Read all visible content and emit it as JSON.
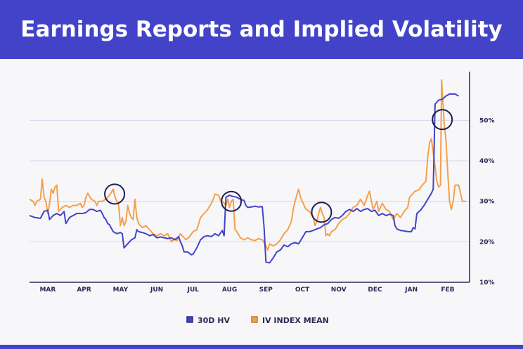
{
  "header": {
    "title": "Earnings Reports and Implied Volatility"
  },
  "colors": {
    "header_bg": "#4343c9",
    "hv": "#4343c9",
    "iv": "#f5a04a",
    "grid": "#d4d4f0",
    "text": "#2a2a55"
  },
  "chart_data": {
    "type": "line",
    "title": "Earnings Reports and Implied Volatility",
    "x_tick_labels": [
      "MAR",
      "APR",
      "MAY",
      "JUN",
      "JUL",
      "AUG",
      "SEP",
      "OCT",
      "NOV",
      "DEC",
      "JAN",
      "FEB"
    ],
    "y_tick_labels": [
      "10%",
      "20%",
      "30%",
      "40%",
      "50%"
    ],
    "y_ticks": [
      10,
      20,
      30,
      40,
      50
    ],
    "ylim": [
      10,
      61
    ],
    "xlim": [
      0,
      12.1
    ],
    "grid": true,
    "legend": "bottom",
    "series": [
      {
        "name": "30D HV",
        "color": "#4343c9",
        "points": [
          [
            0,
            26.5
          ],
          [
            0.15,
            26
          ],
          [
            0.3,
            25.8
          ],
          [
            0.4,
            27.5
          ],
          [
            0.5,
            27.8
          ],
          [
            0.55,
            25.5
          ],
          [
            0.65,
            26.5
          ],
          [
            0.75,
            27
          ],
          [
            0.85,
            26.5
          ],
          [
            0.95,
            27.5
          ],
          [
            1.0,
            24.5
          ],
          [
            1.1,
            26
          ],
          [
            1.2,
            26.5
          ],
          [
            1.3,
            27
          ],
          [
            1.45,
            27
          ],
          [
            1.55,
            27.2
          ],
          [
            1.65,
            28
          ],
          [
            1.75,
            28
          ],
          [
            1.85,
            27.5
          ],
          [
            1.95,
            27.8
          ],
          [
            2.0,
            27
          ],
          [
            2.05,
            26
          ],
          [
            2.1,
            25.5
          ],
          [
            2.15,
            24.5
          ],
          [
            2.2,
            24.2
          ],
          [
            2.3,
            22.5
          ],
          [
            2.4,
            22
          ],
          [
            2.5,
            22.3
          ],
          [
            2.55,
            22
          ],
          [
            2.6,
            18.5
          ],
          [
            2.7,
            19.5
          ],
          [
            2.8,
            20.5
          ],
          [
            2.9,
            21
          ],
          [
            2.95,
            23
          ],
          [
            3.0,
            22.5
          ],
          [
            3.1,
            22.3
          ],
          [
            3.2,
            22
          ],
          [
            3.3,
            21.5
          ],
          [
            3.4,
            21.8
          ],
          [
            3.5,
            21
          ],
          [
            3.6,
            21.2
          ],
          [
            3.7,
            21
          ],
          [
            3.8,
            20.8
          ],
          [
            3.9,
            21
          ],
          [
            4.0,
            20.5
          ],
          [
            4.1,
            21.3
          ],
          [
            4.15,
            20
          ],
          [
            4.2,
            19
          ],
          [
            4.25,
            17.5
          ],
          [
            4.35,
            17.5
          ],
          [
            4.45,
            16.8
          ],
          [
            4.5,
            17
          ],
          [
            4.6,
            18.5
          ],
          [
            4.7,
            20.5
          ],
          [
            4.8,
            21.3
          ],
          [
            4.9,
            21.5
          ],
          [
            5.0,
            21.3
          ],
          [
            5.1,
            22
          ],
          [
            5.2,
            21.5
          ],
          [
            5.3,
            22.8
          ],
          [
            5.35,
            21.5
          ],
          [
            5.4,
            31
          ],
          [
            5.5,
            31.5
          ],
          [
            5.6,
            31.2
          ],
          [
            5.7,
            31
          ],
          [
            5.8,
            30.5
          ],
          [
            5.9,
            30.2
          ],
          [
            5.95,
            29
          ],
          [
            6.0,
            28.5
          ],
          [
            6.1,
            28.6
          ],
          [
            6.2,
            28.8
          ],
          [
            6.3,
            28.6
          ],
          [
            6.4,
            28.7
          ],
          [
            6.45,
            23.5
          ],
          [
            6.5,
            15
          ],
          [
            6.6,
            14.8
          ],
          [
            6.7,
            16
          ],
          [
            6.8,
            17.5
          ],
          [
            6.9,
            18
          ],
          [
            7.0,
            19.2
          ],
          [
            7.1,
            18.8
          ],
          [
            7.2,
            19.5
          ],
          [
            7.3,
            19.8
          ],
          [
            7.4,
            19.5
          ],
          [
            7.5,
            21
          ],
          [
            7.6,
            22.5
          ],
          [
            7.7,
            22.5
          ],
          [
            7.8,
            22.8
          ],
          [
            7.9,
            23.2
          ],
          [
            8.0,
            23.5
          ],
          [
            8.1,
            24.2
          ],
          [
            8.2,
            24.5
          ],
          [
            8.3,
            25.5
          ],
          [
            8.4,
            26
          ],
          [
            8.5,
            25.8
          ],
          [
            8.6,
            26.5
          ],
          [
            8.7,
            27.5
          ],
          [
            8.8,
            28
          ],
          [
            8.9,
            27.5
          ],
          [
            9.0,
            28.2
          ],
          [
            9.1,
            27.5
          ],
          [
            9.2,
            28
          ],
          [
            9.3,
            28.2
          ],
          [
            9.4,
            27.5
          ],
          [
            9.5,
            27.8
          ],
          [
            9.6,
            26.5
          ],
          [
            9.7,
            27
          ],
          [
            9.8,
            26.5
          ],
          [
            9.9,
            26.8
          ],
          [
            10.0,
            26.5
          ],
          [
            10.05,
            24
          ],
          [
            10.1,
            23.2
          ],
          [
            10.2,
            22.8
          ],
          [
            10.3,
            22.7
          ],
          [
            10.4,
            22.5
          ],
          [
            10.5,
            22.5
          ],
          [
            10.55,
            23.5
          ],
          [
            10.6,
            23.2
          ],
          [
            10.65,
            27
          ],
          [
            10.75,
            27.8
          ],
          [
            10.85,
            29
          ],
          [
            10.95,
            30.5
          ],
          [
            11.05,
            32
          ],
          [
            11.1,
            33
          ],
          [
            11.15,
            54
          ],
          [
            11.25,
            55
          ],
          [
            11.35,
            55.2
          ],
          [
            11.45,
            56
          ],
          [
            11.55,
            56.5
          ],
          [
            11.7,
            56.5
          ],
          [
            11.8,
            56
          ]
        ]
      },
      {
        "name": "IV INDEX MEAN",
        "color": "#f5a04a",
        "points": [
          [
            0,
            30.5
          ],
          [
            0.1,
            30
          ],
          [
            0.15,
            29
          ],
          [
            0.2,
            30
          ],
          [
            0.3,
            30.5
          ],
          [
            0.35,
            35.5
          ],
          [
            0.4,
            31
          ],
          [
            0.45,
            30
          ],
          [
            0.5,
            27
          ],
          [
            0.55,
            29.5
          ],
          [
            0.6,
            33
          ],
          [
            0.65,
            32
          ],
          [
            0.7,
            33.5
          ],
          [
            0.75,
            34
          ],
          [
            0.8,
            27.5
          ],
          [
            0.9,
            28.5
          ],
          [
            1.0,
            29
          ],
          [
            1.1,
            28.5
          ],
          [
            1.2,
            29
          ],
          [
            1.3,
            29
          ],
          [
            1.4,
            29.5
          ],
          [
            1.45,
            28.5
          ],
          [
            1.5,
            29
          ],
          [
            1.55,
            31
          ],
          [
            1.6,
            32
          ],
          [
            1.7,
            30.5
          ],
          [
            1.8,
            30
          ],
          [
            1.85,
            29
          ],
          [
            1.9,
            30
          ],
          [
            2.0,
            30
          ],
          [
            2.05,
            30.3
          ],
          [
            2.1,
            30.5
          ],
          [
            2.2,
            31.5
          ],
          [
            2.3,
            33
          ],
          [
            2.35,
            31
          ],
          [
            2.4,
            30
          ],
          [
            2.45,
            29
          ],
          [
            2.5,
            24
          ],
          [
            2.55,
            26
          ],
          [
            2.6,
            24
          ],
          [
            2.65,
            25
          ],
          [
            2.7,
            29
          ],
          [
            2.75,
            27
          ],
          [
            2.8,
            26
          ],
          [
            2.85,
            25.5
          ],
          [
            2.9,
            30.5
          ],
          [
            2.95,
            26
          ],
          [
            3.0,
            24.5
          ],
          [
            3.1,
            23.5
          ],
          [
            3.2,
            24
          ],
          [
            3.3,
            23
          ],
          [
            3.4,
            22
          ],
          [
            3.5,
            21.5
          ],
          [
            3.6,
            22
          ],
          [
            3.7,
            21.5
          ],
          [
            3.8,
            22
          ],
          [
            3.9,
            20
          ],
          [
            4.0,
            20.8
          ],
          [
            4.05,
            20.3
          ],
          [
            4.15,
            22
          ],
          [
            4.2,
            21.5
          ],
          [
            4.3,
            20.5
          ],
          [
            4.4,
            21.3
          ],
          [
            4.5,
            22.5
          ],
          [
            4.6,
            23
          ],
          [
            4.7,
            26
          ],
          [
            4.8,
            27
          ],
          [
            4.9,
            28
          ],
          [
            5.0,
            29.5
          ],
          [
            5.05,
            30.5
          ],
          [
            5.1,
            31.8
          ],
          [
            5.2,
            31.5
          ],
          [
            5.25,
            30.2
          ],
          [
            5.3,
            30
          ],
          [
            5.4,
            29
          ],
          [
            5.45,
            30.5
          ],
          [
            5.5,
            28.5
          ],
          [
            5.55,
            30
          ],
          [
            5.6,
            30.5
          ],
          [
            5.65,
            23
          ],
          [
            5.7,
            22.5
          ],
          [
            5.8,
            21
          ],
          [
            5.9,
            20.5
          ],
          [
            6.0,
            21
          ],
          [
            6.1,
            20.5
          ],
          [
            6.2,
            20.3
          ],
          [
            6.3,
            20.8
          ],
          [
            6.4,
            20.5
          ],
          [
            6.5,
            19
          ],
          [
            6.55,
            18
          ],
          [
            6.6,
            19.5
          ],
          [
            6.7,
            19
          ],
          [
            6.8,
            19.5
          ],
          [
            6.9,
            20.5
          ],
          [
            7.0,
            22
          ],
          [
            7.1,
            23
          ],
          [
            7.2,
            25
          ],
          [
            7.25,
            28
          ],
          [
            7.3,
            30
          ],
          [
            7.4,
            33
          ],
          [
            7.45,
            31
          ],
          [
            7.5,
            30
          ],
          [
            7.6,
            28
          ],
          [
            7.7,
            27.5
          ],
          [
            7.8,
            26
          ],
          [
            7.85,
            24
          ],
          [
            7.9,
            25
          ],
          [
            7.95,
            27
          ],
          [
            8.0,
            28.5
          ],
          [
            8.05,
            27
          ],
          [
            8.1,
            26
          ],
          [
            8.15,
            21.5
          ],
          [
            8.2,
            22
          ],
          [
            8.25,
            21.5
          ],
          [
            8.3,
            22.5
          ],
          [
            8.4,
            23
          ],
          [
            8.5,
            24.5
          ],
          [
            8.6,
            25.5
          ],
          [
            8.7,
            26
          ],
          [
            8.8,
            27
          ],
          [
            8.9,
            28.5
          ],
          [
            9.0,
            29
          ],
          [
            9.1,
            30.5
          ],
          [
            9.2,
            29
          ],
          [
            9.3,
            31.5
          ],
          [
            9.35,
            32.5
          ],
          [
            9.4,
            30
          ],
          [
            9.45,
            28
          ],
          [
            9.5,
            29
          ],
          [
            9.55,
            30
          ],
          [
            9.6,
            27.5
          ],
          [
            9.7,
            29.5
          ],
          [
            9.8,
            28
          ],
          [
            9.9,
            27.5
          ],
          [
            9.95,
            26.5
          ],
          [
            10.0,
            25.5
          ],
          [
            10.1,
            27
          ],
          [
            10.2,
            26
          ],
          [
            10.3,
            27.5
          ],
          [
            10.4,
            28.5
          ],
          [
            10.45,
            31
          ],
          [
            10.5,
            31.5
          ],
          [
            10.6,
            32.5
          ],
          [
            10.7,
            32.8
          ],
          [
            10.8,
            34
          ],
          [
            10.85,
            34.5
          ],
          [
            10.9,
            35
          ],
          [
            10.95,
            41
          ],
          [
            11.0,
            44.5
          ],
          [
            11.05,
            45.5
          ],
          [
            11.1,
            42
          ],
          [
            11.15,
            38.5
          ],
          [
            11.2,
            35
          ],
          [
            11.25,
            33.5
          ],
          [
            11.3,
            34
          ],
          [
            11.33,
            60
          ],
          [
            11.4,
            49.5
          ],
          [
            11.45,
            45
          ],
          [
            11.5,
            37
          ],
          [
            11.55,
            30
          ],
          [
            11.6,
            28
          ],
          [
            11.65,
            30
          ],
          [
            11.7,
            34
          ],
          [
            11.8,
            34
          ],
          [
            11.9,
            30
          ],
          [
            12.0,
            30
          ]
        ]
      }
    ],
    "annotations": [
      {
        "type": "circle",
        "x": 2.34,
        "y": 31.8,
        "label": ""
      },
      {
        "type": "circle",
        "x": 5.55,
        "y": 30.0,
        "label": ""
      },
      {
        "type": "circle",
        "x": 8.03,
        "y": 27.3,
        "label": ""
      },
      {
        "type": "circle",
        "x": 11.35,
        "y": 50.2,
        "label": ""
      }
    ]
  }
}
